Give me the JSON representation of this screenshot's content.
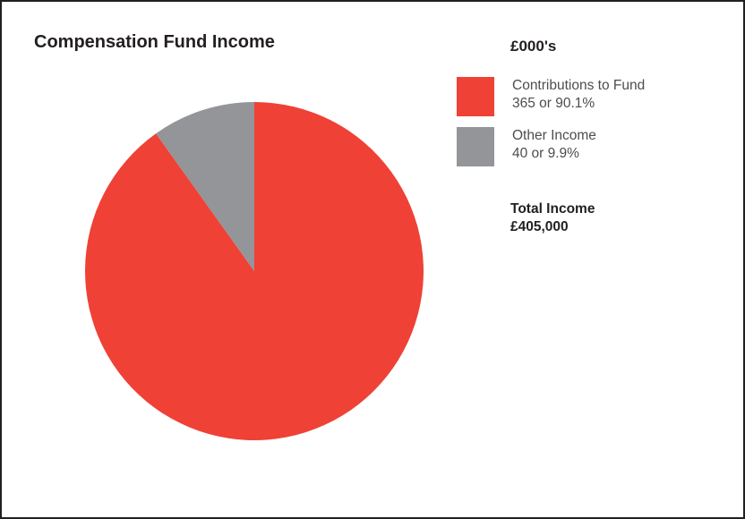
{
  "chart_data": {
    "type": "pie",
    "title": "Compensation Fund Income",
    "units": "£000's",
    "slices": [
      {
        "name": "Contributions to Fund",
        "value": 365,
        "percent": 90.1,
        "detail": "365 or 90.1%",
        "color": "#ef4136"
      },
      {
        "name": "Other Income",
        "value": 40,
        "percent": 9.9,
        "detail": "40 or 9.9%",
        "color": "#939598"
      }
    ],
    "total_label": "Total Income",
    "total_value": "£405,000",
    "legend_position": "right"
  }
}
